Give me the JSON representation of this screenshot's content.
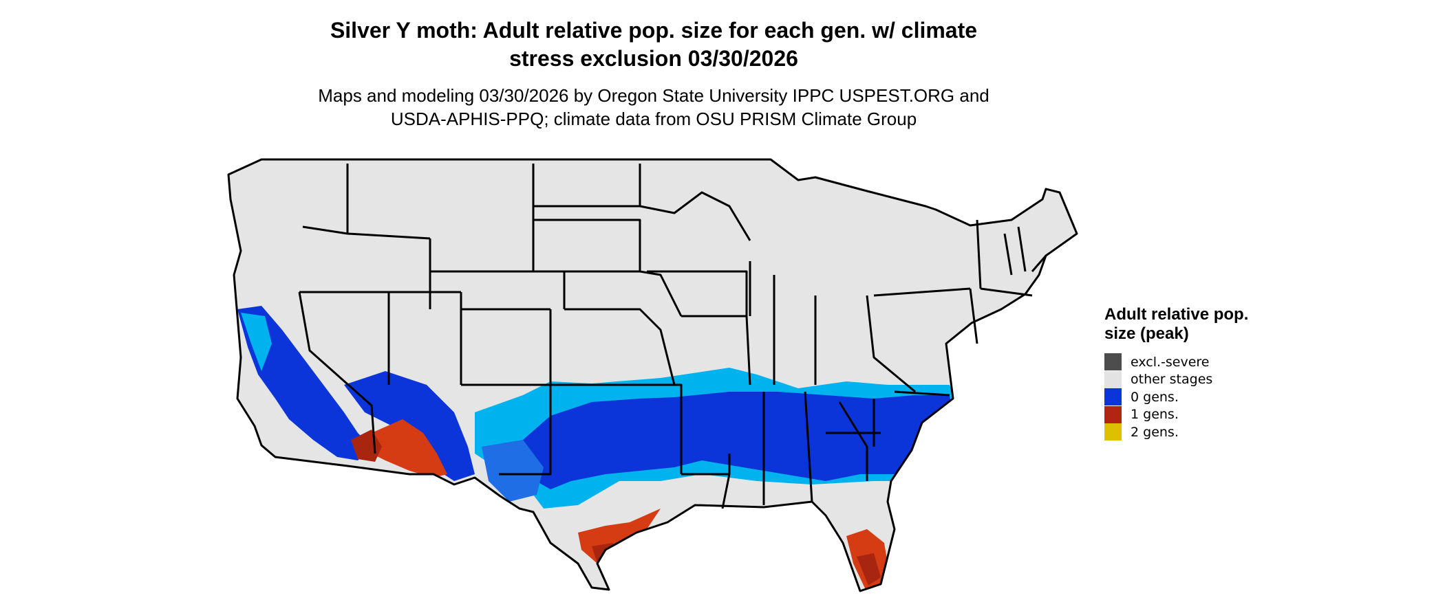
{
  "title_line1": "Silver Y moth: Adult relative pop. size for each gen. w/ climate",
  "title_line2": "stress exclusion 03/30/2026",
  "subtitle_line1": "Maps and modeling 03/30/2026 by Oregon State University IPPC USPEST.ORG and",
  "subtitle_line2": "USDA-APHIS-PPQ; climate data from OSU PRISM Climate Group",
  "legend": {
    "title": "Adult relative pop. size (peak)",
    "items": [
      {
        "label": "excl.-severe",
        "color": "#4d4d4d"
      },
      {
        "label": "other stages",
        "color": "#e3e3e3"
      },
      {
        "label": "0 gens.",
        "color": "#0b35d8"
      },
      {
        "label": "1 gens.",
        "color": "#b22512"
      },
      {
        "label": "2 gens.",
        "color": "#ddc000"
      }
    ]
  },
  "map_colors": {
    "land": "#e5e5e5",
    "border": "#000000",
    "light_blue": "#00b2ee",
    "mid_blue": "#1f6ee6",
    "dark_blue": "#0b35d8",
    "red": "#d63c14",
    "dark_red": "#a82610"
  }
}
